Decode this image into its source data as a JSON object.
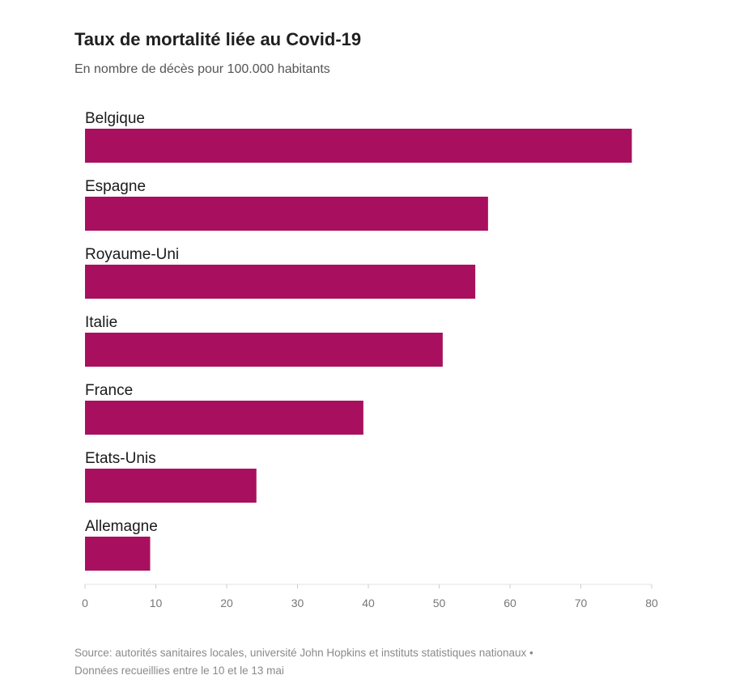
{
  "title": "Taux de mortalité liée au Covid-19",
  "subtitle": "En nombre de décès pour 100.000 habitants",
  "source": {
    "line1": "Source: autorités sanitaires locales, université John Hopkins et instituts statistiques nationaux •",
    "line2": "Données recueillies entre le 10 et le 13 mai"
  },
  "chart_data": {
    "type": "bar",
    "orientation": "horizontal",
    "categories": [
      "Belgique",
      "Espagne",
      "Royaume-Uni",
      "Italie",
      "France",
      "Etats-Unis",
      "Allemagne"
    ],
    "values": [
      77.2,
      56.9,
      55.1,
      50.5,
      39.3,
      24.2,
      9.2
    ],
    "xlim": [
      0,
      80
    ],
    "xticks": [
      0,
      10,
      20,
      30,
      40,
      50,
      60,
      70,
      80
    ],
    "bar_color": "#a8105f",
    "grid": false
  }
}
